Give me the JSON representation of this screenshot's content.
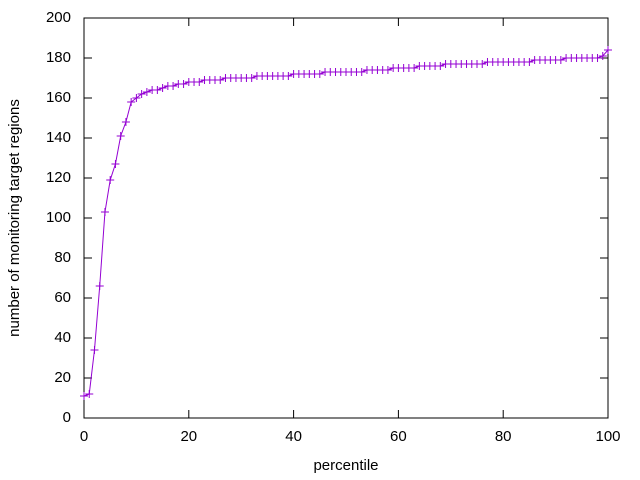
{
  "chart_data": {
    "type": "line",
    "xlabel": "percentile",
    "ylabel": "number of monitoring target regions",
    "x": [
      0,
      1,
      2,
      3,
      4,
      5,
      6,
      7,
      8,
      9,
      10,
      11,
      12,
      13,
      14,
      15,
      16,
      17,
      18,
      19,
      20,
      21,
      22,
      23,
      24,
      25,
      26,
      27,
      28,
      29,
      30,
      31,
      32,
      33,
      34,
      35,
      36,
      37,
      38,
      39,
      40,
      41,
      42,
      43,
      44,
      45,
      46,
      47,
      48,
      49,
      50,
      51,
      52,
      53,
      54,
      55,
      56,
      57,
      58,
      59,
      60,
      61,
      62,
      63,
      64,
      65,
      66,
      67,
      68,
      69,
      70,
      71,
      72,
      73,
      74,
      75,
      76,
      77,
      78,
      79,
      80,
      81,
      82,
      83,
      84,
      85,
      86,
      87,
      88,
      89,
      90,
      91,
      92,
      93,
      94,
      95,
      96,
      97,
      98,
      99,
      100
    ],
    "values": [
      11,
      12,
      34,
      66,
      103,
      119,
      127,
      141,
      148,
      158,
      160,
      162,
      163,
      164,
      164,
      165,
      166,
      166,
      167,
      167,
      168,
      168,
      168,
      169,
      169,
      169,
      169,
      170,
      170,
      170,
      170,
      170,
      170,
      171,
      171,
      171,
      171,
      171,
      171,
      171,
      172,
      172,
      172,
      172,
      172,
      172,
      173,
      173,
      173,
      173,
      173,
      173,
      173,
      173,
      174,
      174,
      174,
      174,
      174,
      175,
      175,
      175,
      175,
      175,
      176,
      176,
      176,
      176,
      176,
      177,
      177,
      177,
      177,
      177,
      177,
      177,
      177,
      178,
      178,
      178,
      178,
      178,
      178,
      178,
      178,
      178,
      179,
      179,
      179,
      179,
      179,
      179,
      180,
      180,
      180,
      180,
      180,
      180,
      180,
      181,
      184
    ],
    "color": "#9400d3",
    "marker": "+",
    "xlim": [
      0,
      100
    ],
    "xticks": [
      0,
      20,
      40,
      60,
      80,
      100
    ],
    "ylim": [
      0,
      200
    ],
    "yticks": [
      0,
      20,
      40,
      60,
      80,
      100,
      120,
      140,
      160,
      180,
      200
    ]
  }
}
